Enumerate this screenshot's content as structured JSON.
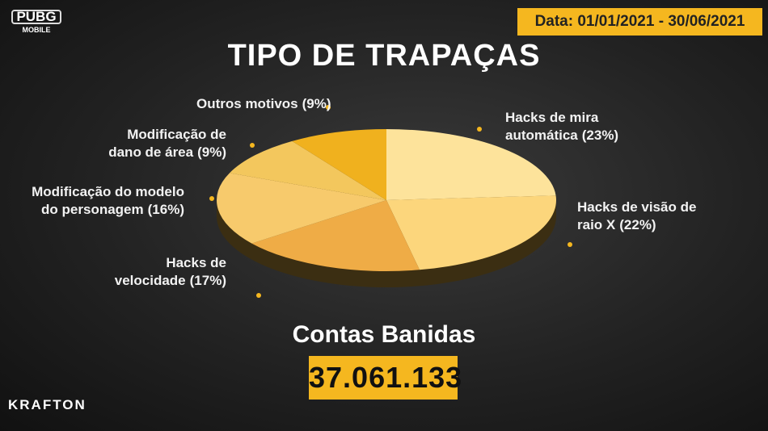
{
  "chart_data": {
    "type": "pie",
    "title": "TIPO DE TRAPAÇAS",
    "date_label": "Data: 01/01/2021 - 30/06/2021",
    "categories": [
      "Hacks de mira automática",
      "Hacks de visão de raio X",
      "Hacks de velocidade",
      "Modificação do modelo do personagem",
      "Modificação de dano de área",
      "Outros motivos"
    ],
    "values": [
      23,
      22,
      17,
      16,
      9,
      9
    ],
    "value_labels": [
      "(23%)",
      "(22%)",
      "(17%)",
      "(16%)",
      "(9%)",
      "(9%)"
    ],
    "colors": [
      "#fde39b",
      "#fcd67c",
      "#efac46",
      "#f7ca6c",
      "#f3c75d",
      "#f0b11e"
    ],
    "banned_label": "Contas Banidas",
    "banned_count": "37.061.133",
    "logos": [
      "PUBG",
      "MOBILE",
      "KRAFTON"
    ]
  }
}
